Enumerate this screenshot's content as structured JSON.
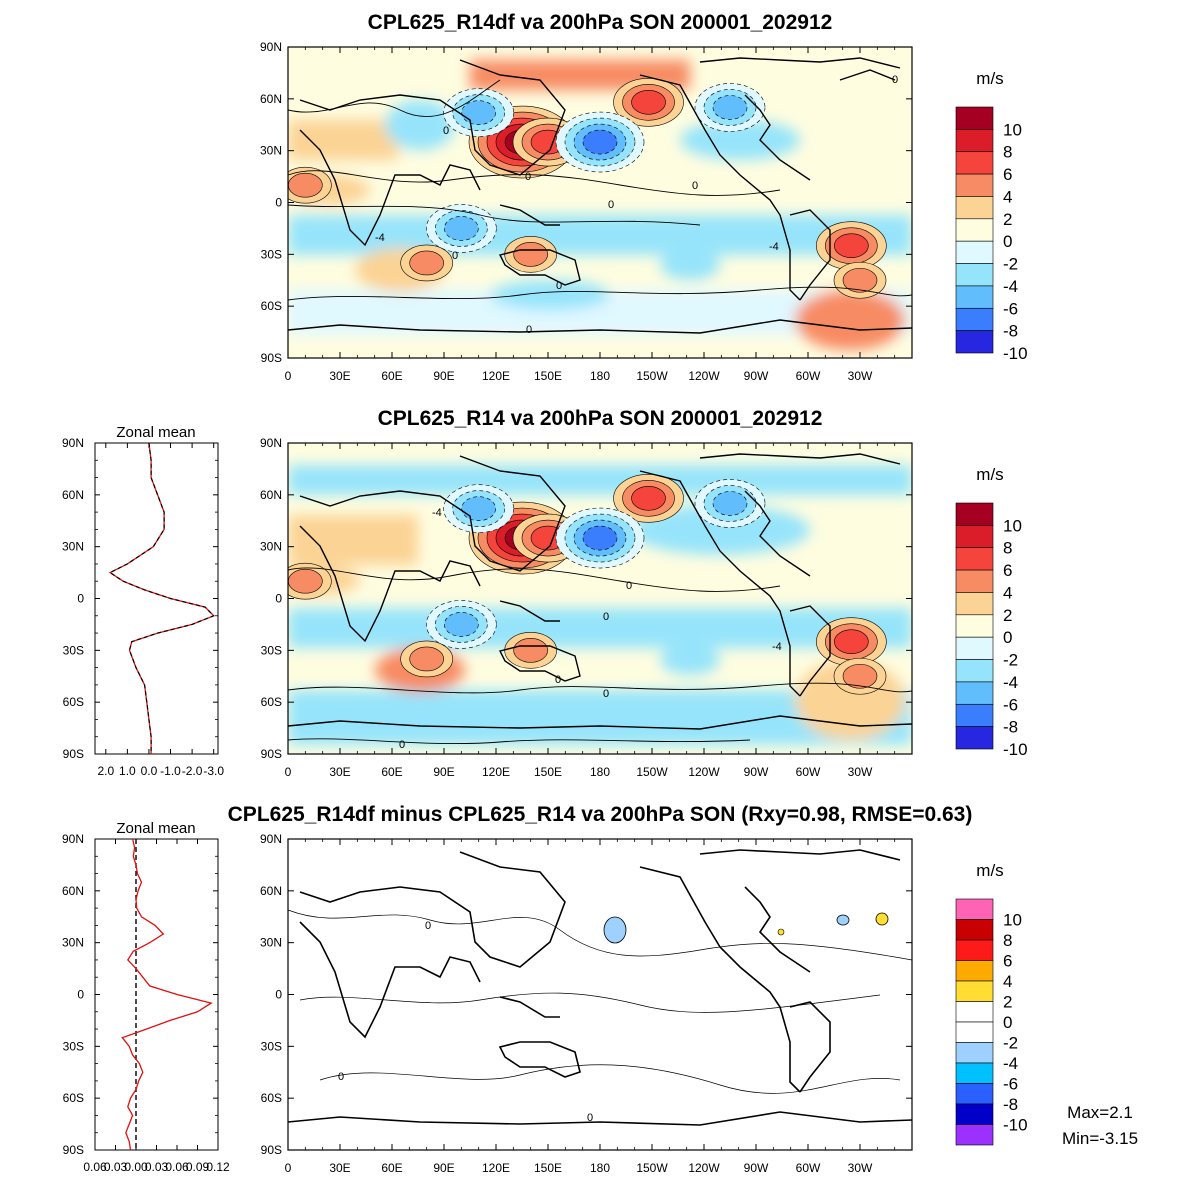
{
  "colors": {
    "div": [
      "#a50021",
      "#db1d2a",
      "#f4443c",
      "#f78b63",
      "#fbd394",
      "#fefde0",
      "#e0f8ff",
      "#96e4fb",
      "#61bdfb",
      "#3a7dfd",
      "#2726e0"
    ],
    "diff": [
      "#ff63b5",
      "#c80000",
      "#ff1a1a",
      "#ffaa00",
      "#ffdd33",
      "#ffffff",
      "#ffffff",
      "#9fd1ff",
      "#00c0ff",
      "#2a60ff",
      "#0000c8",
      "#9b30ff"
    ],
    "zonal_mean_line": "#e01010",
    "zonal_mean_dash": "#000000"
  },
  "chart_data": [
    {
      "type": "heatmap",
      "id": "top",
      "title": "CPL625_R14df va 200hPa SON 200001_202912",
      "lat_ticks": [
        "90N",
        "60N",
        "30N",
        "0",
        "30S",
        "60S",
        "90S"
      ],
      "lon_ticks": [
        "0",
        "30E",
        "60E",
        "90E",
        "120E",
        "150E",
        "180",
        "150W",
        "120W",
        "90W",
        "60W",
        "30W"
      ],
      "colorbar": {
        "unit": "m/s",
        "labels": [
          "10",
          "8",
          "6",
          "4",
          "2",
          "0",
          "-2",
          "-4",
          "-6",
          "-8",
          "-10"
        ]
      },
      "contour_labels": [
        "0",
        "0",
        "0",
        "0",
        "0",
        "0",
        "0",
        "0",
        "-4",
        "-4"
      ],
      "blobs": [
        {
          "lon": 135,
          "lat": 35,
          "level": 10
        },
        {
          "lon": 150,
          "lat": 35,
          "level": 6
        },
        {
          "lon": 208,
          "lat": 58,
          "level": 6
        },
        {
          "lon": 325,
          "lat": -25,
          "level": 6
        },
        {
          "lon": 180,
          "lat": 35,
          "level": -8
        },
        {
          "lon": 110,
          "lat": 52,
          "level": -6
        },
        {
          "lon": 100,
          "lat": -15,
          "level": -6
        },
        {
          "lon": 255,
          "lat": 55,
          "level": -6
        },
        {
          "lon": 330,
          "lat": -45,
          "level": 4
        },
        {
          "lon": 80,
          "lat": -35,
          "level": 4
        },
        {
          "lon": 140,
          "lat": -30,
          "level": 4
        },
        {
          "lon": 10,
          "lat": 10,
          "level": 4
        }
      ]
    },
    {
      "type": "heatmap",
      "id": "middle",
      "title": "CPL625_R14 va 200hPa SON 200001_202912",
      "lat_ticks": [
        "90N",
        "60N",
        "30N",
        "0",
        "30S",
        "60S",
        "90S"
      ],
      "lon_ticks": [
        "0",
        "30E",
        "60E",
        "90E",
        "120E",
        "150E",
        "180",
        "150W",
        "120W",
        "90W",
        "60W",
        "30W"
      ],
      "colorbar": {
        "unit": "m/s",
        "labels": [
          "10",
          "8",
          "6",
          "4",
          "2",
          "0",
          "-2",
          "-4",
          "-6",
          "-8",
          "-10"
        ]
      },
      "contour_labels": [
        "0",
        "0",
        "0",
        "0",
        "0",
        "-4",
        "-4"
      ],
      "zonal_mean": {
        "title": "Zonal mean",
        "x_ticks": [
          "2.0",
          "1.0",
          "0.0",
          "-1.0",
          "-2.0",
          "-3.0"
        ],
        "xlim": [
          2.5,
          -3.2
        ],
        "lat": [
          90,
          80,
          70,
          60,
          50,
          40,
          30,
          20,
          15,
          10,
          5,
          0,
          -5,
          -10,
          -15,
          -20,
          -25,
          -30,
          -40,
          -50,
          -60,
          -70,
          -80,
          -90
        ],
        "value": [
          0,
          -0.1,
          -0.1,
          -0.4,
          -0.7,
          -0.7,
          -0.2,
          1.0,
          1.8,
          1.2,
          0.2,
          -1.0,
          -2.6,
          -3.0,
          -2.0,
          -0.4,
          0.8,
          0.9,
          0.6,
          0.2,
          0.1,
          0.0,
          -0.1,
          -0.1
        ]
      }
    },
    {
      "type": "heatmap",
      "id": "bottom",
      "title": "CPL625_R14df minus CPL625_R14 va 200hPa SON (Rxy=0.98, RMSE=0.63)",
      "lat_ticks": [
        "90N",
        "60N",
        "30N",
        "0",
        "30S",
        "60S",
        "90S"
      ],
      "lon_ticks": [
        "0",
        "30E",
        "60E",
        "90E",
        "120E",
        "150E",
        "180",
        "150W",
        "120W",
        "90W",
        "60W",
        "30W"
      ],
      "colorbar": {
        "unit": "m/s",
        "labels": [
          "10",
          "8",
          "6",
          "4",
          "2",
          "0",
          "-2",
          "-4",
          "-6",
          "-8",
          "-10"
        ]
      },
      "contour_labels": [
        "0",
        "0",
        "0"
      ],
      "stats": {
        "max": "Max=2.1",
        "min": "Min=-3.15"
      },
      "zonal_mean": {
        "title": "Zonal mean",
        "x_ticks": [
          "0.06",
          "0.03",
          "0.00",
          "0.03",
          "0.06",
          "0.09",
          "0.12"
        ],
        "xlim": [
          -0.06,
          0.12
        ],
        "lat": [
          90,
          85,
          80,
          75,
          70,
          65,
          60,
          55,
          50,
          45,
          40,
          35,
          30,
          25,
          20,
          15,
          10,
          5,
          0,
          -5,
          -10,
          -15,
          -20,
          -25,
          -30,
          -35,
          -40,
          -45,
          -50,
          -55,
          -60,
          -65,
          -70,
          -75,
          -80,
          -85,
          -90
        ],
        "value": [
          -0.005,
          -0.002,
          -0.004,
          0.0,
          0.002,
          0.008,
          0.003,
          0.0,
          0.001,
          0.008,
          0.028,
          0.04,
          0.02,
          -0.004,
          -0.012,
          0.0,
          0.01,
          0.02,
          0.06,
          0.11,
          0.09,
          0.05,
          0.015,
          -0.02,
          -0.01,
          -0.005,
          0.005,
          0.01,
          0.004,
          0.0,
          -0.008,
          -0.012,
          -0.005,
          -0.01,
          -0.015,
          -0.01,
          -0.008
        ]
      }
    }
  ]
}
